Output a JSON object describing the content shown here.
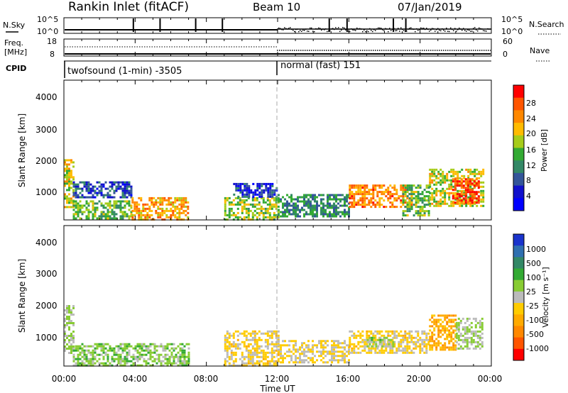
{
  "header": {
    "station": "Rankin Inlet (fitACF)",
    "beam": "Beam 10",
    "date": "07/Jan/2019"
  },
  "summary": {
    "nsky_label": "N.Sky",
    "nsky_ticks": [
      "10^5",
      "10^0"
    ],
    "nsearch_label": "N.Search",
    "nsearch_ticks": [
      "10^5",
      "10^0"
    ],
    "freq_label_1": "Freq.",
    "freq_label_2": "[MHz]",
    "freq_ticks": [
      "18",
      "8"
    ],
    "nave_label": "Nave",
    "nave_ticks": [
      "60",
      "0"
    ],
    "cpid_label": "CPID",
    "cpid_modes": [
      {
        "name": "twofsound (1-min) -3505",
        "start_hour": 0
      },
      {
        "name": "normal (fast) 151",
        "start_hour": 12
      }
    ],
    "nsky_spikes_hours": [
      3.9,
      5.4,
      7.4,
      8.9,
      14.9,
      15.9,
      18.5,
      19.2
    ]
  },
  "power_panel": {
    "ylabel": "Slant Range [km]",
    "yticks": [
      "4000",
      "3000",
      "2000",
      "1000"
    ],
    "colorbar_label": "Power [dB]",
    "colorbar_ticks": [
      "28",
      "24",
      "20",
      "16",
      "12",
      "8",
      "4"
    ],
    "colorbar_colors": [
      "#ff0000",
      "#ff5500",
      "#ff8800",
      "#ffbb00",
      "#a6cc1a",
      "#33aa33",
      "#338866",
      "#335599",
      "#1111cc",
      "#0000ff"
    ]
  },
  "velocity_panel": {
    "ylabel": "Slant Range [km]",
    "yticks": [
      "4000",
      "3000",
      "2000",
      "1000"
    ],
    "colorbar_label": "Velocity [m s⁻¹]",
    "colorbar_ticks": [
      "1000",
      "500",
      "100",
      "25",
      "-25",
      "-100",
      "-500",
      "-1000"
    ],
    "colorbar_colors": [
      "#1a33cc",
      "#2f6fb0",
      "#338866",
      "#33aa33",
      "#88cc33",
      "#bbbbbb",
      "#ffcc00",
      "#ffaa00",
      "#ff8800",
      "#ff5500",
      "#ff0000"
    ]
  },
  "x_axis": {
    "label": "Time UT",
    "ticks": [
      "00:00",
      "04:00",
      "08:00",
      "12:00",
      "16:00",
      "20:00",
      "00:00"
    ]
  },
  "chart_data": [
    {
      "type": "heatmap",
      "title": "Power",
      "xlabel": "Time UT",
      "ylabel": "Slant Range [km]",
      "xlim": [
        0,
        24
      ],
      "ylim": [
        180,
        4600
      ],
      "colorbar": "Power [dB]",
      "clim": [
        0,
        30
      ],
      "regions": [
        {
          "t": [
            0.0,
            0.5
          ],
          "r": [
            600,
            2100
          ],
          "v": 18
        },
        {
          "t": [
            0.5,
            3.8
          ],
          "r": [
            200,
            800
          ],
          "v": 14
        },
        {
          "t": [
            0.5,
            3.8
          ],
          "r": [
            900,
            1400
          ],
          "v": 6
        },
        {
          "t": [
            3.8,
            7.0
          ],
          "r": [
            200,
            900
          ],
          "v": 22
        },
        {
          "t": [
            9.0,
            12.0
          ],
          "r": [
            200,
            900
          ],
          "v": 16
        },
        {
          "t": [
            9.5,
            12.0
          ],
          "r": [
            900,
            1350
          ],
          "v": 5
        },
        {
          "t": [
            12.0,
            16.0
          ],
          "r": [
            300,
            1000
          ],
          "v": 10
        },
        {
          "t": [
            16.0,
            19.5
          ],
          "r": [
            600,
            1300
          ],
          "v": 24
        },
        {
          "t": [
            19.0,
            20.5
          ],
          "r": [
            300,
            1300
          ],
          "v": 14
        },
        {
          "t": [
            20.5,
            23.5
          ],
          "r": [
            600,
            1800
          ],
          "v": 18
        },
        {
          "t": [
            21.8,
            23.3
          ],
          "r": [
            700,
            1500
          ],
          "v": 28
        }
      ]
    },
    {
      "type": "heatmap",
      "title": "Velocity",
      "xlabel": "Time UT",
      "ylabel": "Slant Range [km]",
      "xlim": [
        0,
        24
      ],
      "ylim": [
        180,
        4600
      ],
      "colorbar": "Velocity [m s⁻¹]",
      "clim": [
        -1000,
        1000
      ],
      "regions": [
        {
          "t": [
            0.0,
            0.5
          ],
          "r": [
            600,
            2100
          ],
          "v": 120
        },
        {
          "t": [
            0.5,
            7.0
          ],
          "r": [
            200,
            900
          ],
          "v": 200
        },
        {
          "t": [
            9.0,
            12.0
          ],
          "r": [
            200,
            1300
          ],
          "v": -150
        },
        {
          "t": [
            12.0,
            16.0
          ],
          "r": [
            300,
            1000
          ],
          "v": -100
        },
        {
          "t": [
            16.0,
            20.5
          ],
          "r": [
            600,
            1300
          ],
          "v": -150
        },
        {
          "t": [
            17.0,
            18.5
          ],
          "r": [
            800,
            1100
          ],
          "v": 150
        },
        {
          "t": [
            20.5,
            22.0
          ],
          "r": [
            700,
            1800
          ],
          "v": -400
        },
        {
          "t": [
            22.0,
            23.5
          ],
          "r": [
            700,
            1700
          ],
          "v": 120
        }
      ]
    }
  ]
}
